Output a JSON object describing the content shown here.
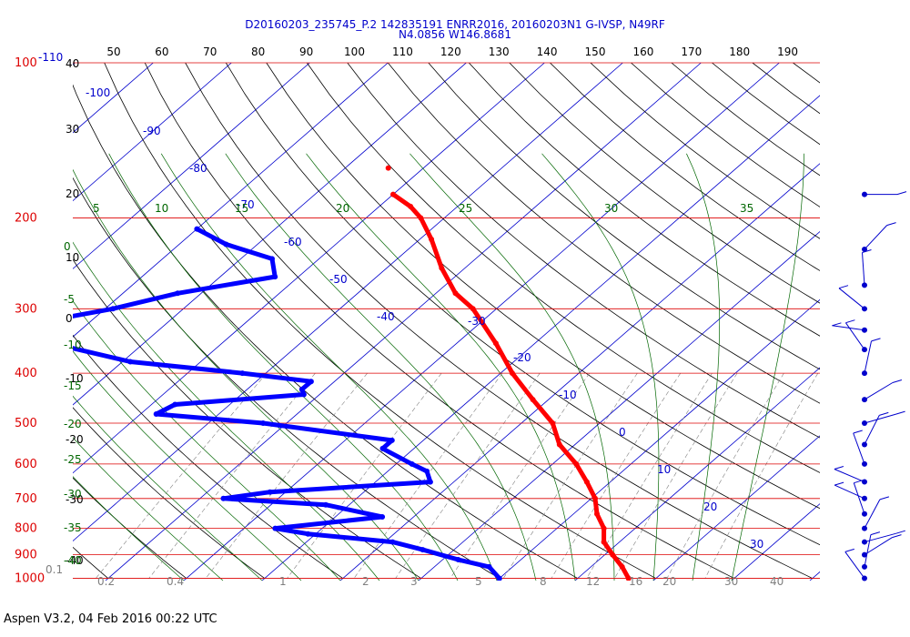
{
  "header": {
    "line1": "D20160203_235745_P.2 142835191 ENRR2016, 20160203N1 G-IVSP, N49RF",
    "line2": "N4.0856 W146.8681"
  },
  "footer": {
    "text": "Aspen V3.2, 04 Feb 2016  00:22 UTC"
  },
  "chart_data": {
    "type": "line",
    "subtype": "skew-T log-P sounding",
    "pressure_axis": {
      "levels": [
        100,
        200,
        300,
        400,
        500,
        600,
        700,
        800,
        900,
        1000
      ],
      "labels": [
        "100",
        "200",
        "300",
        "400",
        "500",
        "600",
        "700",
        "800",
        "900",
        "1000"
      ],
      "scale": "log",
      "color": "#dd0000"
    },
    "top_extra_label": "-110",
    "temperature_axis": {
      "labels": [
        "40",
        "30",
        "20",
        "10",
        "0",
        "-10",
        "-20",
        "-30",
        "-40"
      ],
      "values": [
        40,
        30,
        20,
        10,
        0,
        -10,
        -20,
        -30,
        -40
      ]
    },
    "top_scale": {
      "labels": [
        "50",
        "60",
        "70",
        "80",
        "90",
        "100",
        "110",
        "120",
        "130",
        "140",
        "150",
        "160",
        "170",
        "180",
        "190"
      ]
    },
    "isotherm_labels": [
      "-100",
      "-90",
      "-80",
      "-70",
      "-60",
      "-50",
      "-40",
      "-30",
      "-20",
      "-10",
      "0",
      "10",
      "20",
      "30"
    ],
    "isotherm_values": [
      -100,
      -90,
      -80,
      -70,
      -60,
      -50,
      -40,
      -30,
      -20,
      -10,
      0,
      10,
      20,
      30
    ],
    "theta_e_top_labels": [
      "5",
      "10",
      "15",
      "20",
      "25",
      "30",
      "35"
    ],
    "left_green_labels": [
      "0",
      "-5",
      "-10",
      "-15",
      "-20",
      "-25",
      "-30",
      "-35",
      "-40"
    ],
    "mixing_ratio_labels": [
      "0.1",
      "0.2",
      "0.4",
      "1",
      "2",
      "3",
      "5",
      "8",
      "12",
      "16",
      "20",
      "30",
      "40"
    ],
    "temperature_profile": [
      [
        180,
        -60
      ],
      [
        190,
        -56
      ],
      [
        200,
        -53
      ],
      [
        220,
        -48.5
      ],
      [
        250,
        -43
      ],
      [
        280,
        -37.5
      ],
      [
        300,
        -33
      ],
      [
        350,
        -25
      ],
      [
        400,
        -18.5
      ],
      [
        450,
        -12
      ],
      [
        500,
        -6
      ],
      [
        550,
        -2
      ],
      [
        600,
        3
      ],
      [
        650,
        7
      ],
      [
        700,
        10.5
      ],
      [
        750,
        13
      ],
      [
        800,
        16
      ],
      [
        850,
        18
      ],
      [
        900,
        21
      ],
      [
        950,
        24
      ],
      [
        1000,
        26.5
      ]
    ],
    "isolated_temperature_point": [
      160,
      -64.5
    ],
    "dewpoint_profile": [
      [
        210,
        -80
      ],
      [
        225,
        -74
      ],
      [
        240,
        -66
      ],
      [
        260,
        -63
      ],
      [
        280,
        -73
      ],
      [
        300,
        -79
      ],
      [
        315,
        -85
      ],
      [
        345,
        -84
      ],
      [
        380,
        -69
      ],
      [
        400,
        -53
      ],
      [
        415,
        -43
      ],
      [
        430,
        -43
      ],
      [
        440,
        -42
      ],
      [
        460,
        -57
      ],
      [
        480,
        -58
      ],
      [
        500,
        -43
      ],
      [
        540,
        -24
      ],
      [
        560,
        -24
      ],
      [
        600,
        -18
      ],
      [
        620,
        -15
      ],
      [
        650,
        -13
      ],
      [
        680,
        -32
      ],
      [
        700,
        -37
      ],
      [
        720,
        -23
      ],
      [
        760,
        -14
      ],
      [
        800,
        -26
      ],
      [
        820,
        -21
      ],
      [
        850,
        -9
      ],
      [
        880,
        -4
      ],
      [
        920,
        2
      ],
      [
        950,
        7
      ],
      [
        1000,
        10
      ]
    ],
    "colors": {
      "isobar": "#dd0000",
      "isotherm": "#0000cc",
      "dry_adiabat": "#000000",
      "moist_adiabat": "#006600",
      "mixing_ratio": "#7f7f7f",
      "temperature": "#ff0000",
      "dewpoint": "#0000ff"
    },
    "wind_barb_levels": [
      180,
      230,
      270,
      300,
      330,
      360,
      400,
      450,
      500,
      550,
      600,
      650,
      700,
      750,
      800,
      850,
      900,
      950,
      1000
    ]
  }
}
